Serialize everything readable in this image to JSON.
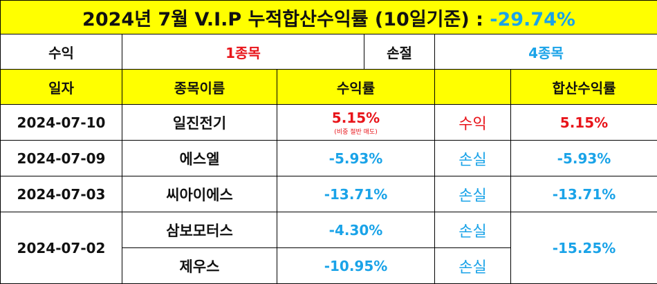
{
  "title": {
    "text": "2024년 7월 V.I.P 누적합산수익률 (10일기준) :",
    "total_return": "-29.74%"
  },
  "summary": {
    "profit_label": "수익",
    "profit_count": "1종목",
    "loss_label": "손절",
    "loss_count": "4종목"
  },
  "headers": {
    "date": "일자",
    "name": "종목이름",
    "return": "수익률",
    "status": "",
    "combined": "합산수익률"
  },
  "rows": [
    {
      "date": "2024-07-10",
      "name": "일진전기",
      "return": "5.15%",
      "note": "(비중 절반 매도)",
      "status": "수익",
      "combined": "5.15%"
    },
    {
      "date": "2024-07-09",
      "name": "에스엘",
      "return": "-5.93%",
      "status": "손실",
      "combined": "-5.93%"
    },
    {
      "date": "2024-07-03",
      "name": "씨아이에스",
      "return": "-13.71%",
      "status": "손실",
      "combined": "-13.71%"
    },
    {
      "date": "2024-07-02",
      "name": "삼보모터스",
      "return": "-4.30%",
      "status": "손실",
      "combined": "-15.25%"
    },
    {
      "name": "제우스",
      "return": "-10.95%",
      "status": "손실"
    }
  ],
  "colors": {
    "header_bg": "#ffff00",
    "profit": "#e8141a",
    "loss": "#1aa3e8"
  }
}
